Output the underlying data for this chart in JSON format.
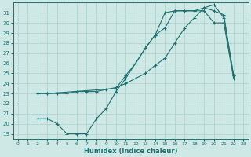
{
  "xlabel": "Humidex (Indice chaleur)",
  "bg_color": "#cde8e5",
  "line_color": "#1e7070",
  "grid_color": "#aed0cc",
  "xlim": [
    -0.5,
    23.5
  ],
  "ylim": [
    18.5,
    32.0
  ],
  "xticks": [
    0,
    1,
    2,
    3,
    4,
    5,
    6,
    7,
    8,
    9,
    10,
    11,
    12,
    13,
    14,
    15,
    16,
    17,
    18,
    19,
    20,
    21,
    22,
    23
  ],
  "yticks": [
    19,
    20,
    21,
    22,
    23,
    24,
    25,
    26,
    27,
    28,
    29,
    30,
    31
  ],
  "line1_x": [
    2,
    3,
    4,
    5,
    6,
    7,
    8,
    9,
    10,
    11,
    12,
    13,
    14,
    15,
    16,
    17,
    18,
    19,
    20,
    21,
    22
  ],
  "line1_y": [
    20.5,
    20.5,
    20.0,
    19.0,
    19.0,
    19.0,
    20.5,
    21.5,
    23.2,
    24.5,
    26.0,
    27.5,
    28.8,
    31.0,
    31.2,
    31.2,
    31.2,
    31.2,
    30.0,
    30.0,
    24.5
  ],
  "line2_x": [
    2,
    3,
    10,
    11,
    12,
    13,
    14,
    15,
    16,
    17,
    18,
    19,
    20,
    21,
    22
  ],
  "line2_y": [
    23.0,
    23.0,
    23.5,
    24.8,
    26.0,
    27.5,
    28.8,
    29.5,
    31.2,
    31.2,
    31.2,
    31.5,
    31.2,
    30.8,
    24.8
  ],
  "line3_x": [
    2,
    3,
    4,
    5,
    6,
    7,
    8,
    9,
    10,
    11,
    12,
    13,
    14,
    15,
    16,
    17,
    18,
    19,
    20,
    21,
    22
  ],
  "line3_y": [
    23.0,
    23.0,
    23.0,
    23.0,
    23.2,
    23.2,
    23.2,
    23.4,
    23.6,
    24.0,
    24.5,
    25.0,
    25.8,
    26.5,
    28.0,
    29.5,
    30.5,
    31.5,
    31.8,
    30.5,
    24.8
  ]
}
